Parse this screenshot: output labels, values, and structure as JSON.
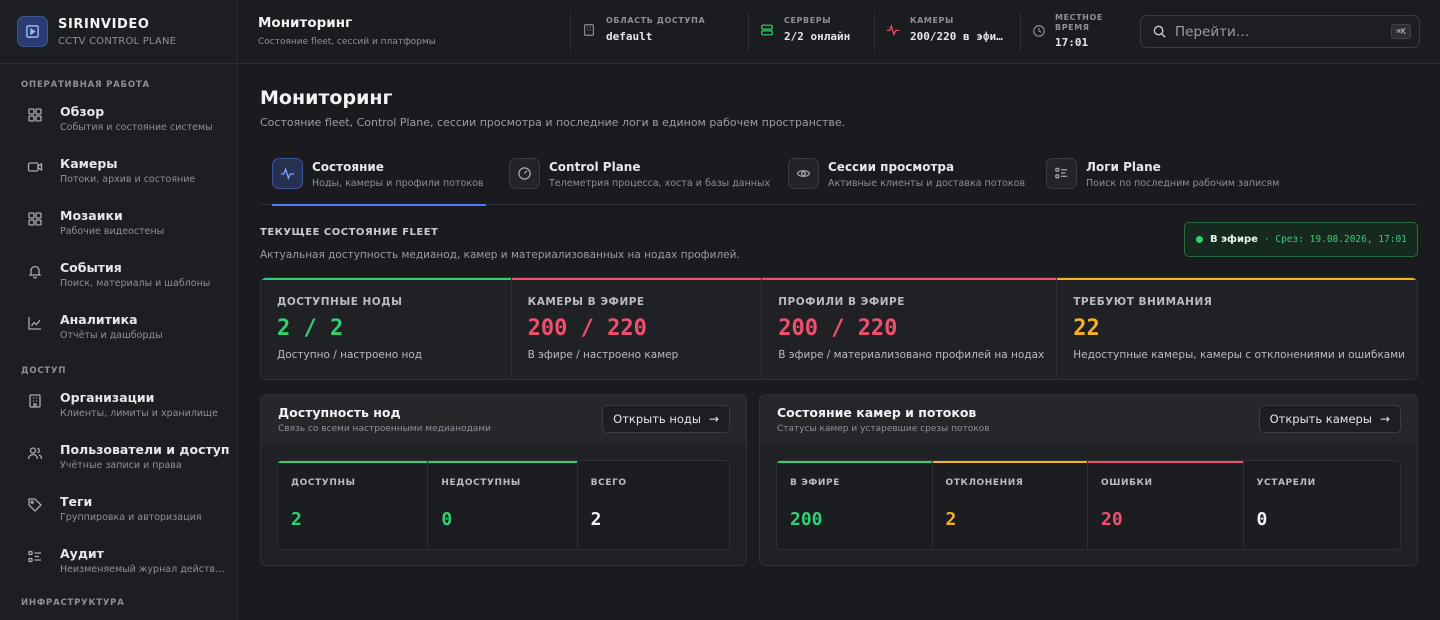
{
  "brand": {
    "name": "SIRINVIDEO",
    "subtitle": "CCTV CONTROL PLANE"
  },
  "sidebar": {
    "sections": [
      {
        "title": "ОПЕРАТИВНАЯ РАБОТА",
        "items": [
          {
            "label": "Обзор",
            "desc": "События и состояние системы",
            "icon": "grid-icon"
          },
          {
            "label": "Камеры",
            "desc": "Потоки, архив и состояние",
            "icon": "camera-icon"
          },
          {
            "label": "Мозаики",
            "desc": "Рабочие видеостены",
            "icon": "mosaic-icon"
          },
          {
            "label": "События",
            "desc": "Поиск, материалы и шаблоны",
            "icon": "bell-icon"
          },
          {
            "label": "Аналитика",
            "desc": "Отчёты и дашборды",
            "icon": "chart-icon"
          }
        ]
      },
      {
        "title": "ДОСТУП",
        "items": [
          {
            "label": "Организации",
            "desc": "Клиенты, лимиты и хранилище",
            "icon": "building-icon"
          },
          {
            "label": "Пользователи и доступ",
            "desc": "Учётные записи и права",
            "icon": "users-icon"
          },
          {
            "label": "Теги",
            "desc": "Группировка и авторизация",
            "icon": "tag-icon"
          },
          {
            "label": "Аудит",
            "desc": "Неизменяемый журнал действ…",
            "icon": "list-icon"
          }
        ]
      },
      {
        "title": "ИНФРАСТРУКТУРА",
        "items": []
      }
    ]
  },
  "topbar": {
    "title": "Мониторинг",
    "subtitle": "Состояние fleet, сессий и платформы",
    "scope": {
      "label": "ОБЛАСТЬ ДОСТУПА",
      "value": "default"
    },
    "servers": {
      "label": "СЕРВЕРЫ",
      "value": "2/2 онлайн"
    },
    "cameras": {
      "label": "КАМЕРЫ",
      "value": "200/220 в эфи…"
    },
    "time": {
      "label_1": "МЕСТНОЕ",
      "label_2": "ВРЕМЯ",
      "value": "17:01"
    },
    "search": {
      "placeholder": "Перейти…",
      "shortcut": "⌘K"
    }
  },
  "page": {
    "title": "Мониторинг",
    "subtitle": "Состояние fleet, Control Plane, сессии просмотра и последние логи в едином рабочем пространстве."
  },
  "tabs": [
    {
      "label": "Состояние",
      "desc": "Ноды, камеры и профили потоков",
      "active": true
    },
    {
      "label": "Control Plane",
      "desc": "Телеметрия процесса, хоста и базы данных"
    },
    {
      "label": "Сессии просмотра",
      "desc": "Активные клиенты и доставка потоков"
    },
    {
      "label": "Логи Plane",
      "desc": "Поиск по последним рабочим записям"
    }
  ],
  "fleet": {
    "title": "ТЕКУЩЕЕ СОСТОЯНИЕ FLEET",
    "subtitle": "Актуальная доступность медианод, камер и материализованных на нодах профилей.",
    "live_label": "В эфире",
    "slice": "· Срез: 19.08.2026, 17:01",
    "stats": [
      {
        "label": "ДОСТУПНЫЕ НОДЫ",
        "value": "2 / 2",
        "desc": "Доступно / настроено нод",
        "color": "#2fd172"
      },
      {
        "label": "КАМЕРЫ В ЭФИРЕ",
        "value": "200 / 220",
        "desc": "В эфире / настроено камер",
        "color": "#f0506e"
      },
      {
        "label": "ПРОФИЛИ В ЭФИРЕ",
        "value": "200 / 220",
        "desc": "В эфире / материализовано профилей на нодах",
        "color": "#f0506e"
      },
      {
        "label": "ТРЕБУЮТ ВНИМАНИЯ",
        "value": "22",
        "desc": "Недоступные камеры, камеры с отклонениями и ошибками",
        "color": "#f5b323"
      }
    ]
  },
  "nodes_panel": {
    "title": "Доступность нод",
    "subtitle": "Связь со всеми настроенными медианодами",
    "button": "Открыть ноды",
    "items": [
      {
        "label": "ДОСТУПНЫ",
        "value": "2",
        "color": "#2fd172"
      },
      {
        "label": "НЕДОСТУПНЫ",
        "value": "0",
        "color": "#2fd172"
      },
      {
        "label": "ВСЕГО",
        "value": "2",
        "color": "#f2f3f5"
      }
    ]
  },
  "cameras_panel": {
    "title": "Состояние камер и потоков",
    "subtitle": "Статусы камер и устаревшие срезы потоков",
    "button": "Открыть камеры",
    "items": [
      {
        "label": "В ЭФИРЕ",
        "value": "200",
        "color": "#2fd172"
      },
      {
        "label": "ОТКЛОНЕНИЯ",
        "value": "2",
        "color": "#f5b323"
      },
      {
        "label": "ОШИБКИ",
        "value": "20",
        "color": "#f0506e"
      },
      {
        "label": "УСТАРЕЛИ",
        "value": "0",
        "color": "#f2f3f5"
      }
    ]
  }
}
